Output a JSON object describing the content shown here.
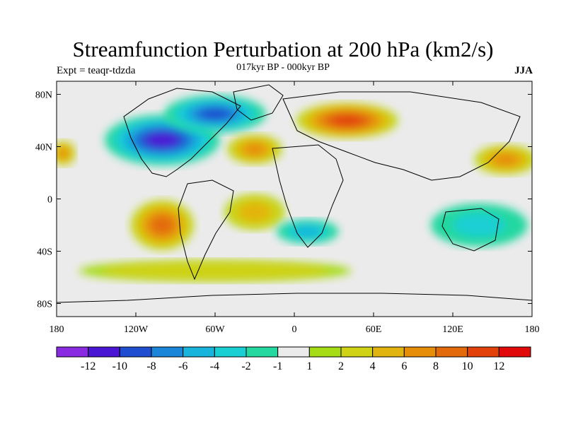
{
  "title": "Streamfunction Perturbation at 200 hPa (km2/s)",
  "left_label": "Expt = teaqr-tdzda",
  "center_label": "017kyr BP - 000kyr BP",
  "right_label": "JJA",
  "lat_ticks": [
    "80N",
    "40N",
    "0",
    "40S",
    "80S"
  ],
  "lat_values": [
    80,
    40,
    0,
    -40,
    -80
  ],
  "lon_ticks": [
    "180",
    "120W",
    "60W",
    "0",
    "60E",
    "120E",
    "180"
  ],
  "lon_values": [
    -180,
    -120,
    -60,
    0,
    60,
    120,
    180
  ],
  "colorbar": {
    "colors": [
      "#8a2be2",
      "#4b15d4",
      "#1f4fd0",
      "#1b86d8",
      "#19b4dc",
      "#1acfd4",
      "#24d8a0",
      "#ebebeb",
      "#a6dc16",
      "#cfd215",
      "#e2b410",
      "#e68d0a",
      "#e26a0a",
      "#e2420a",
      "#e00a0a"
    ],
    "labels": [
      "-12",
      "-10",
      "-8",
      "-6",
      "-4",
      "-2",
      "-1",
      "1",
      "2",
      "4",
      "6",
      "8",
      "10",
      "12"
    ]
  },
  "map_data": {
    "background_class": "#ebebeb",
    "anomalies": [
      {
        "name": "north-america-low",
        "lon": -100,
        "lat": 45,
        "rx": 45,
        "ry": 20,
        "value": -12
      },
      {
        "name": "canada-low",
        "lon": -60,
        "lat": 65,
        "rx": 40,
        "ry": 15,
        "value": -10
      },
      {
        "name": "north-pacific-high",
        "lon": -175,
        "lat": 35,
        "rx": 10,
        "ry": 10,
        "value": 6
      },
      {
        "name": "atlantic-high",
        "lon": -30,
        "lat": 38,
        "rx": 22,
        "ry": 12,
        "value": 6
      },
      {
        "name": "eurasia-high",
        "lon": 40,
        "lat": 60,
        "rx": 40,
        "ry": 14,
        "value": 10
      },
      {
        "name": "west-pacific-high",
        "lon": 160,
        "lat": 30,
        "rx": 25,
        "ry": 12,
        "value": 6
      },
      {
        "name": "south-pacific-high",
        "lon": -100,
        "lat": -20,
        "rx": 25,
        "ry": 20,
        "value": 8
      },
      {
        "name": "south-atlantic-high",
        "lon": -30,
        "lat": -10,
        "rx": 25,
        "ry": 15,
        "value": 4
      },
      {
        "name": "south-indian-low",
        "lon": 10,
        "lat": -25,
        "rx": 25,
        "ry": 10,
        "value": -6
      },
      {
        "name": "australia-low",
        "lon": 140,
        "lat": -20,
        "rx": 40,
        "ry": 18,
        "value": -4
      },
      {
        "name": "southern-ocean-band",
        "lon": -60,
        "lat": -55,
        "rx": 120,
        "ry": 10,
        "value": 2
      }
    ]
  }
}
